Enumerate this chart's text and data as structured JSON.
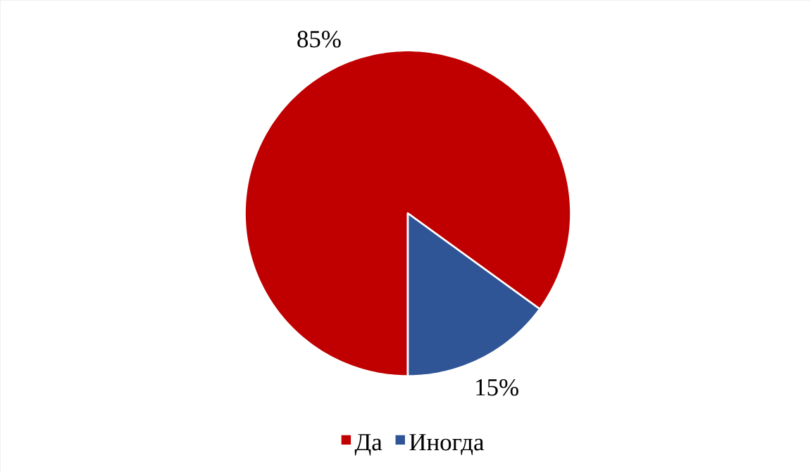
{
  "chart_data": {
    "type": "pie",
    "categories": [
      "Да",
      "Иногда"
    ],
    "values": [
      85,
      15
    ],
    "colors": [
      "#c00000",
      "#2f5597"
    ],
    "value_labels": [
      "85%",
      "15%"
    ],
    "legend": "bottom"
  }
}
